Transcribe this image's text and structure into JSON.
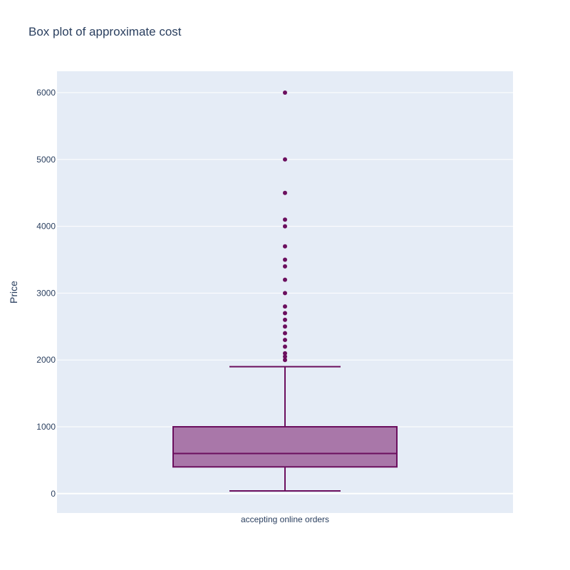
{
  "chart_data": {
    "type": "box",
    "title": "Box plot of approximate cost",
    "xlabel": "",
    "ylabel": "Price",
    "categories": [
      "accepting online orders"
    ],
    "ylim": [
      -290,
      6320
    ],
    "yticks": [
      0,
      1000,
      2000,
      3000,
      4000,
      5000,
      6000
    ],
    "grid": true,
    "legend": "none",
    "colors": {
      "box_fill": "#a977a9",
      "box_line": "#6b0f5e",
      "plot_bg": "#e5ecf6",
      "grid": "#ffffff",
      "text": "#2a3f5f"
    },
    "box": {
      "min": 40,
      "q1": 400,
      "median": 600,
      "q3": 1000,
      "upper_fence": 1900,
      "outliers": [
        2000,
        2050,
        2100,
        2200,
        2300,
        2400,
        2500,
        2600,
        2700,
        2800,
        3000,
        3200,
        3400,
        3500,
        3700,
        4000,
        4100,
        4500,
        5000,
        6000
      ]
    }
  }
}
